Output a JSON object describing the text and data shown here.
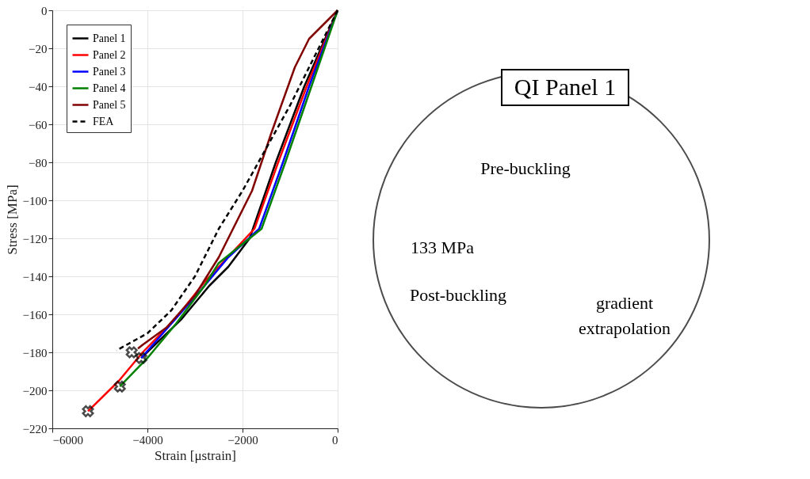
{
  "chart_data": [
    {
      "type": "line",
      "xlabel": "Strain [μstrain]",
      "ylabel": "Stress [MPa]",
      "xlim": [
        -6000,
        0
      ],
      "xticks": [
        -6000,
        -4000,
        -2000,
        0
      ],
      "ylim": [
        -220,
        0
      ],
      "yticks": [
        -220,
        -200,
        -180,
        -160,
        -140,
        -120,
        -100,
        -80,
        -60,
        -40,
        -20,
        0
      ],
      "grid": true,
      "legend": "top left",
      "line_style": "solid",
      "series": [
        {
          "name": "Panel 1",
          "color": "#000000",
          "x": [
            0,
            -700,
            -1300,
            -1850,
            -2300,
            -2700,
            -3300,
            -4130
          ],
          "values": [
            0,
            -40,
            -80,
            -120,
            -135,
            -145,
            -163,
            -183
          ]
        },
        {
          "name": "Panel 2",
          "color": "#ff0000",
          "x": [
            0,
            -650,
            -1250,
            -1750,
            -2500,
            -2800,
            -3400,
            -4100,
            -4600,
            -5250
          ],
          "values": [
            0,
            -40,
            -80,
            -115,
            -135,
            -143,
            -162,
            -180,
            -195,
            -211
          ]
        },
        {
          "name": "Panel 3",
          "color": "#0000ff",
          "x": [
            0,
            -600,
            -1150,
            -1650,
            -2300,
            -2900,
            -3500,
            -4130
          ],
          "values": [
            0,
            -40,
            -80,
            -115,
            -130,
            -148,
            -165,
            -183
          ]
        },
        {
          "name": "Panel 4",
          "color": "#008000",
          "x": [
            0,
            -550,
            -1100,
            -1600,
            -2500,
            -2800,
            -3400,
            -4000,
            -4580
          ],
          "values": [
            0,
            -40,
            -80,
            -115,
            -133,
            -145,
            -165,
            -183,
            -198
          ]
        },
        {
          "name": "Panel 5",
          "color": "#800000",
          "x": [
            0,
            -600,
            -900,
            -1400,
            -1800,
            -2500,
            -3000,
            -3600,
            -4100,
            -4200
          ],
          "values": [
            0,
            -15,
            -30,
            -65,
            -95,
            -130,
            -150,
            -167,
            -176,
            -178
          ]
        },
        {
          "name": "FEA",
          "color": "#000000",
          "line_style": "dashed",
          "x": [
            0,
            -1000,
            -2000,
            -2500,
            -3000,
            -3500,
            -4000,
            -4650
          ],
          "values": [
            0,
            -50,
            -95,
            -115,
            -140,
            -158,
            -170,
            -179
          ]
        },
        {
          "type": "scatter",
          "marker": "cross",
          "color": "#000000",
          "x": [
            -4330,
            -4130,
            -4580,
            -5250
          ],
          "values": [
            -180,
            -183,
            -198,
            -211
          ]
        }
      ]
    },
    {
      "type": "other",
      "title": "QI Panel 1",
      "annotations": [
        "133 MPa",
        "Pre-buckling",
        "Post-buckling",
        "gradient extrapolation"
      ]
    }
  ]
}
